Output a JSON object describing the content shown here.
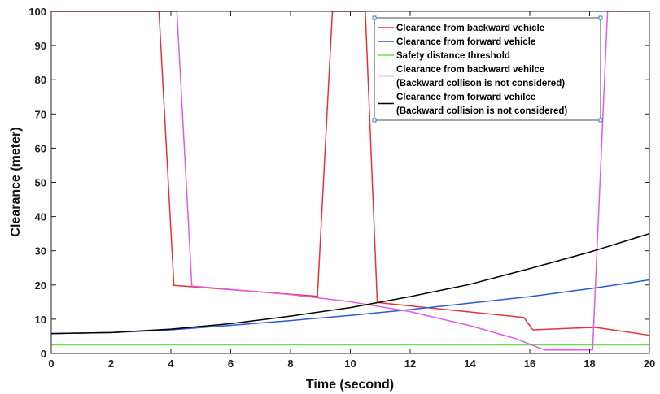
{
  "chart_data": {
    "type": "line",
    "xlabel": "Time (second)",
    "ylabel": "Clearance (meter)",
    "xlim": [
      0,
      20
    ],
    "ylim": [
      0,
      100
    ],
    "xticks": [
      0,
      2,
      4,
      6,
      8,
      10,
      12,
      14,
      16,
      18,
      20
    ],
    "yticks": [
      0,
      10,
      20,
      30,
      40,
      50,
      60,
      70,
      80,
      90,
      100
    ],
    "grid": false,
    "legend_position": "top-right",
    "series": [
      {
        "name": "Clearance from backward vehicle",
        "color": "#e8313a",
        "x": [
          0,
          3.6,
          4.1,
          8.9,
          9.4,
          10.5,
          10.9,
          11.2,
          15.8,
          16.1,
          17.5,
          18.2,
          20
        ],
        "y": [
          100,
          100,
          19.9,
          16.7,
          100,
          100,
          14.9,
          14.6,
          10.5,
          6.9,
          7.4,
          7.6,
          5.3
        ]
      },
      {
        "name": "Clearance from forward vehicle",
        "color": "#2a5ad7",
        "x": [
          0,
          2,
          4,
          6,
          8,
          10,
          12,
          14,
          16,
          18,
          20
        ],
        "y": [
          5.8,
          6.1,
          6.9,
          8.2,
          9.6,
          11.1,
          12.8,
          14.7,
          16.6,
          18.9,
          21.5
        ]
      },
      {
        "name": "Safety distance threshold",
        "color": "#66e04a",
        "x": [
          0,
          20
        ],
        "y": [
          2.5,
          2.5
        ]
      },
      {
        "name": "Clearance from backward vehilce\n(Backward collison is not considered)",
        "color": "#e25ce6",
        "x": [
          0,
          4.2,
          4.7,
          6,
          8,
          10,
          12,
          14,
          15.5,
          16.5,
          17.5,
          18,
          18.1,
          18.6,
          20
        ],
        "y": [
          100,
          100,
          19.7,
          18.7,
          17.2,
          15.1,
          12.2,
          8.1,
          4.4,
          1.0,
          1.0,
          1.0,
          1.0,
          100,
          100
        ]
      },
      {
        "name": "Clearance from forward vehilce\n(Backward collision is not considered)",
        "color": "#000000",
        "x": [
          0,
          2,
          4,
          6,
          8,
          10,
          12,
          14,
          16,
          18,
          20
        ],
        "y": [
          5.8,
          6.1,
          7.1,
          8.7,
          10.9,
          13.4,
          16.6,
          20.2,
          24.8,
          29.6,
          35
        ]
      }
    ]
  }
}
